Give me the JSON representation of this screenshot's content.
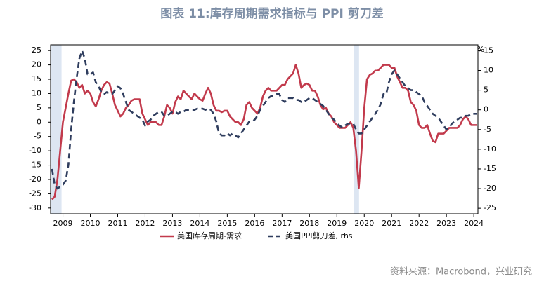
{
  "chart_data": {
    "type": "line",
    "title": "图表 11:库存周期需求指标与 PPI 剪刀差",
    "source": "资料来源：Macrobond，兴业研究",
    "y2_unit_label": "%",
    "x": [
      2009.1,
      2009.2,
      2009.3,
      2009.4,
      2009.5,
      2009.6,
      2009.7,
      2009.8,
      2009.9,
      2010.0,
      2010.1,
      2010.2,
      2010.3,
      2010.4,
      2010.5,
      2010.6,
      2010.7,
      2010.8,
      2010.9,
      2011.0,
      2011.1,
      2011.2,
      2011.3,
      2011.4,
      2011.5,
      2011.6,
      2011.7,
      2011.8,
      2011.9,
      2012.0,
      2012.1,
      2012.2,
      2012.3,
      2012.4,
      2012.5,
      2012.6,
      2012.7,
      2012.8,
      2012.9,
      2013.0,
      2013.1,
      2013.2,
      2013.3,
      2013.4,
      2013.5,
      2013.6,
      2013.7,
      2013.8,
      2013.9,
      2014.0,
      2014.1,
      2014.2,
      2014.3,
      2014.4,
      2014.5,
      2014.6,
      2014.7,
      2014.8,
      2014.9,
      2015.0,
      2015.1,
      2015.2,
      2015.3,
      2015.4,
      2015.5,
      2015.6,
      2015.7,
      2015.8,
      2015.9,
      2016.0,
      2016.1,
      2016.2,
      2016.3,
      2016.4,
      2016.5,
      2016.6,
      2016.7,
      2016.8,
      2016.9,
      2017.0,
      2017.1,
      2017.2,
      2017.3,
      2017.4,
      2017.5,
      2017.6,
      2017.7,
      2017.8,
      2017.9,
      2018.0,
      2018.1,
      2018.2,
      2018.3,
      2018.4,
      2018.5,
      2018.6,
      2018.7,
      2018.8,
      2018.9,
      2019.0,
      2019.1,
      2019.2,
      2019.3,
      2019.4,
      2019.5,
      2019.6,
      2019.7,
      2019.8,
      2019.9,
      2020.0,
      2020.1,
      2020.2,
      2020.3,
      2020.4,
      2020.5,
      2020.6,
      2020.7,
      2020.8,
      2020.9,
      2021.0,
      2021.1,
      2021.2,
      2021.3,
      2021.4,
      2021.5,
      2021.6,
      2021.7,
      2021.8,
      2021.9,
      2022.0,
      2022.1,
      2022.2,
      2022.3,
      2022.4,
      2022.5,
      2022.6,
      2022.7,
      2022.8,
      2022.9,
      2023.0,
      2023.1,
      2023.2,
      2023.3,
      2023.4,
      2023.5,
      2023.6,
      2023.7,
      2023.8,
      2023.9,
      2024.0,
      2024.1,
      2024.2,
      2024.3,
      2024.4,
      2024.5,
      2024.6
    ],
    "series": [
      {
        "name": "美国库存周期-需求",
        "color": "#c23a4c",
        "dash": false,
        "values": [
          -27,
          -26,
          -20,
          -10,
          0,
          5,
          10,
          14.5,
          15,
          14,
          12,
          13,
          10,
          11,
          10,
          7,
          5.5,
          8,
          11,
          13,
          14,
          13.5,
          10,
          6,
          4,
          2,
          3,
          5,
          6,
          7.5,
          8,
          8,
          8,
          3,
          1,
          -1,
          0,
          0,
          0,
          -1,
          -1,
          2,
          6,
          5,
          3,
          7,
          9,
          8,
          11,
          10,
          9,
          8,
          10,
          9,
          8,
          7.5,
          10,
          12,
          10,
          6,
          4,
          4,
          3.5,
          4,
          4,
          2,
          1,
          0,
          0,
          -1,
          1,
          6,
          7,
          5,
          4,
          3,
          5,
          9,
          11,
          12,
          11,
          11,
          11,
          12,
          13,
          13,
          15,
          16,
          17,
          20,
          17,
          12,
          13,
          13.5,
          13,
          11,
          11,
          9,
          6,
          4.5,
          5,
          3,
          2,
          0,
          -1,
          -2,
          -2,
          -2,
          -1,
          0,
          -2,
          -10,
          -23,
          -10,
          5,
          15,
          16.5,
          17,
          18,
          18,
          19,
          20,
          20,
          20,
          19,
          19,
          16,
          14,
          12,
          12,
          11,
          7,
          6,
          4,
          -1,
          -2,
          -2,
          -1,
          -4,
          -6.5,
          -7,
          -4,
          -4,
          -4,
          -3,
          -2,
          -2,
          -2,
          -2,
          -1,
          1,
          2,
          1,
          -1,
          -1,
          -1
        ]
      },
      {
        "name": "美国PPI剪刀差, rhs",
        "color": "#2f3d5e",
        "dash": true,
        "axis": "y2",
        "values": [
          -15,
          -19,
          -20,
          -19.5,
          -19,
          -18,
          -14,
          -5,
          2,
          8,
          13,
          15,
          13,
          9,
          9,
          9.5,
          7,
          6,
          4.5,
          4,
          4.5,
          4,
          4,
          5,
          6,
          5.5,
          4,
          2,
          0,
          -0.5,
          -1,
          -1.5,
          -2,
          -2.5,
          -4,
          -3,
          -2.5,
          -1.5,
          -1,
          -0.5,
          -0.5,
          -1.5,
          -1.5,
          -1,
          -0.5,
          -0.5,
          -1,
          -0.5,
          -0.5,
          0,
          0,
          0,
          0,
          0.3,
          0.3,
          0.3,
          0,
          0.3,
          0,
          -1,
          -3,
          -6,
          -6.5,
          -6.5,
          -6,
          -6.5,
          -6,
          -6.5,
          -7,
          -6,
          -5,
          -4,
          -3,
          -3,
          -2.5,
          -1.5,
          0,
          1,
          2,
          3,
          3.5,
          3.5,
          4,
          4,
          2.5,
          2,
          3,
          3,
          3,
          2.5,
          2.5,
          2,
          2,
          2.5,
          3,
          3,
          2.5,
          2,
          1.5,
          1,
          0,
          -1,
          -2,
          -2.5,
          -3.5,
          -4,
          -4.5,
          -4,
          -3.5,
          -3.5,
          -3.5,
          -5,
          -6,
          -6,
          -5,
          -4,
          -3,
          -2,
          -1,
          0,
          1.5,
          4,
          4,
          7,
          9,
          10,
          9,
          8,
          7,
          6,
          5.5,
          5,
          5,
          4.5,
          4,
          3.5,
          2,
          1,
          0,
          -1,
          -1.5,
          -2,
          -3,
          -4,
          -5,
          -4.5,
          -3.5,
          -3,
          -2.5,
          -2,
          -2,
          -1.5,
          -1.5,
          -1,
          -1,
          -1
        ]
      }
    ],
    "shaded_regions": [
      [
        2009.05,
        2009.45
      ],
      [
        2020.13,
        2020.31
      ]
    ],
    "shade_color": "#dde6f2",
    "xlim": [
      2009.05,
      2024.65
    ],
    "xticks": [
      {
        "value": 2009.5,
        "label": "2009"
      },
      {
        "value": 2010.5,
        "label": "2010"
      },
      {
        "value": 2011.5,
        "label": "2011"
      },
      {
        "value": 2012.5,
        "label": "2012"
      },
      {
        "value": 2013.5,
        "label": "2013"
      },
      {
        "value": 2014.5,
        "label": "2014"
      },
      {
        "value": 2015.5,
        "label": "2015"
      },
      {
        "value": 2016.5,
        "label": "2016"
      },
      {
        "value": 2017.5,
        "label": "2017"
      },
      {
        "value": 2018.5,
        "label": "2018"
      },
      {
        "value": 2019.5,
        "label": "2019"
      },
      {
        "value": 2020.5,
        "label": "2020"
      },
      {
        "value": 2021.5,
        "label": "2021"
      },
      {
        "value": 2022.5,
        "label": "2022"
      },
      {
        "value": 2023.5,
        "label": "2023"
      },
      {
        "value": 2024.5,
        "label": "2024"
      }
    ],
    "ylim": [
      -32,
      27
    ],
    "yticks": [
      25,
      20,
      15,
      10,
      5,
      0,
      -5,
      -10,
      -15,
      -20,
      -25,
      -30
    ],
    "y2lim": [
      -26.4,
      16.5
    ],
    "y2ticks": [
      15,
      10,
      5,
      0,
      -5,
      -10,
      -15,
      -20,
      -25
    ],
    "legend": "bottom"
  }
}
